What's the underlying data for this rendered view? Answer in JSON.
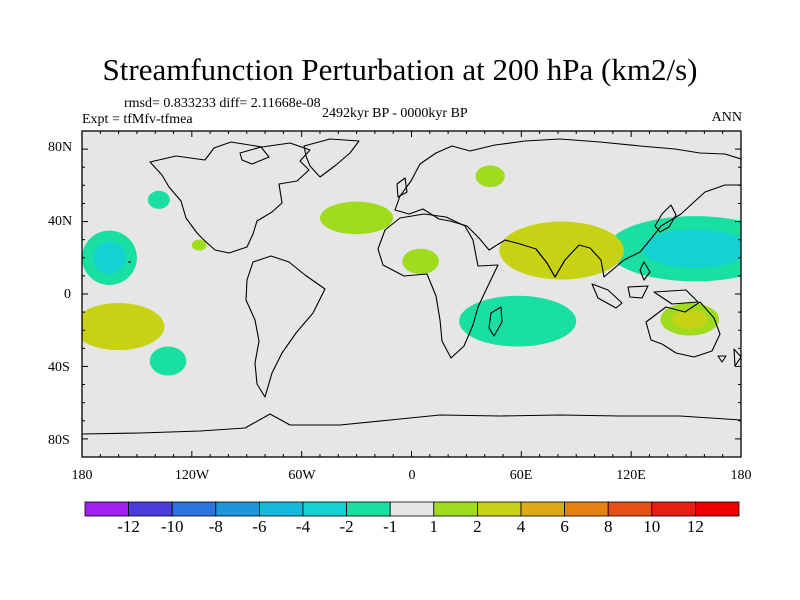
{
  "title": "Streamfunction Perturbation at 200 hPa (km2/s)",
  "stats": "rmsd= 0.833233 diff= 2.11668e-08",
  "experiment": "Expt = tfMfv-tfmea",
  "period": "2492kyr BP - 0000kyr BP",
  "season": "ANN",
  "latitude_labels": [
    "80N",
    "40N",
    "0",
    "40S",
    "80S"
  ],
  "longitude_labels": [
    "180",
    "120W",
    "60W",
    "0",
    "60E",
    "120E",
    "180"
  ],
  "colorbar": {
    "labels": [
      "-12",
      "-10",
      "-8",
      "-6",
      "-4",
      "-2",
      "-1",
      "1",
      "2",
      "4",
      "6",
      "8",
      "10",
      "12"
    ],
    "colors": [
      "#a020f0",
      "#4b3cdb",
      "#2d73e0",
      "#1e96dc",
      "#14b9dc",
      "#14d2d2",
      "#19e0a0",
      "#e6e6e6",
      "#a0dc1e",
      "#c8d214",
      "#dcaa14",
      "#e68214",
      "#e65014",
      "#e61e14",
      "#f00000"
    ]
  },
  "chart_data": {
    "type": "map",
    "variable": "Streamfunction perturbation at 200 hPa",
    "units": "km2/s",
    "projection": "cylindrical equidistant",
    "lon_range": [
      -180,
      180
    ],
    "lat_range": [
      -90,
      90
    ],
    "levels": [
      -12,
      -10,
      -8,
      -6,
      -4,
      -2,
      -1,
      1,
      2,
      4,
      6,
      8,
      10,
      12
    ],
    "anomalies": [
      {
        "name": "north-pacific-negative",
        "lon": 155,
        "lat": 25,
        "rx": 48,
        "ry": 18,
        "value": -1.5,
        "core_value": -2.5
      },
      {
        "name": "western-australia-positive",
        "lon": 152,
        "lat": -14,
        "rx": 16,
        "ry": 9,
        "value": 1.5,
        "core_value": 3
      },
      {
        "name": "south-asia-positive",
        "lon": 82,
        "lat": 24,
        "rx": 34,
        "ry": 16,
        "value": 2.5,
        "core_value": 3.5
      },
      {
        "name": "south-indian-ocean-negative",
        "lon": 58,
        "lat": -15,
        "rx": 32,
        "ry": 14,
        "value": -1.5,
        "core_value": -1.5
      },
      {
        "name": "arctic-asia-positive",
        "lon": 43,
        "lat": 65,
        "rx": 8,
        "ry": 6,
        "value": 1.5,
        "core_value": 1.5
      },
      {
        "name": "north-atlantic-positive",
        "lon": -30,
        "lat": 42,
        "rx": 20,
        "ry": 9,
        "value": 1.5,
        "core_value": 1.5
      },
      {
        "name": "west-africa-positive",
        "lon": 5,
        "lat": 18,
        "rx": 10,
        "ry": 7,
        "value": 1.5,
        "core_value": 1.5
      },
      {
        "name": "gulf-alaska-negative",
        "lon": -138,
        "lat": 52,
        "rx": 6,
        "ry": 5,
        "value": -1.5,
        "core_value": -1.5
      },
      {
        "name": "baja-positive",
        "lon": -116,
        "lat": 27,
        "rx": 4,
        "ry": 3,
        "value": 1.5,
        "core_value": 1.5
      },
      {
        "name": "east-pacific-negative",
        "lon": -165,
        "lat": 20,
        "rx": 15,
        "ry": 15,
        "value": -1.5,
        "core_value": -2.5
      },
      {
        "name": "south-pacific-positive",
        "lon": -160,
        "lat": -18,
        "rx": 25,
        "ry": 13,
        "value": 2,
        "core_value": 3.5
      },
      {
        "name": "southeast-pacific-negative",
        "lon": -133,
        "lat": -37,
        "rx": 10,
        "ry": 8,
        "value": -1.5,
        "core_value": -1.5
      }
    ]
  }
}
